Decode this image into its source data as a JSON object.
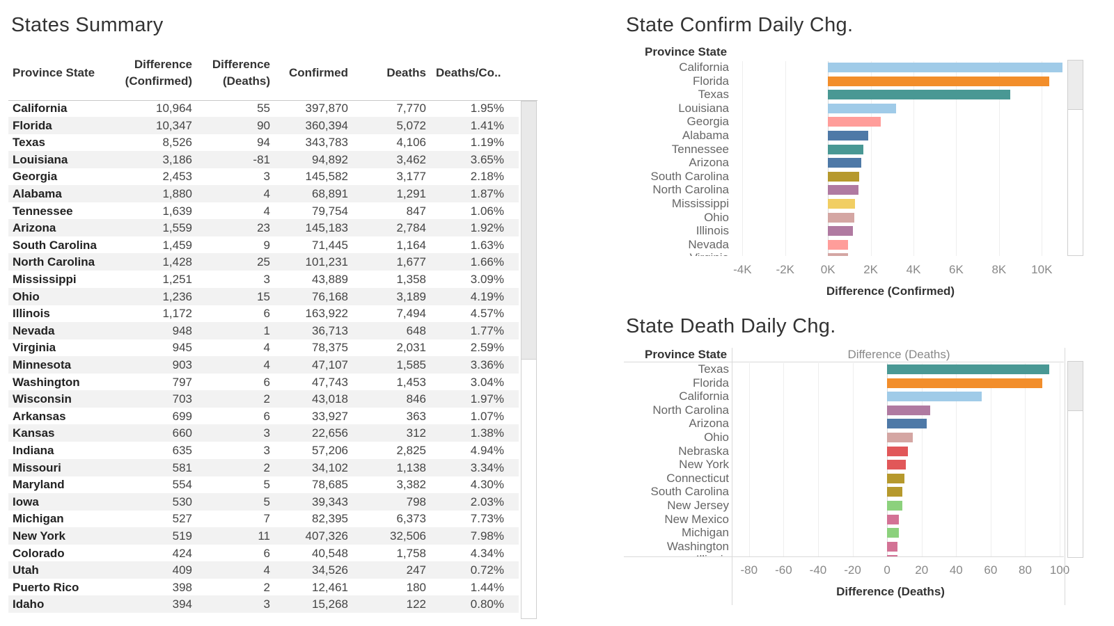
{
  "summary": {
    "title": "States Summary",
    "columns": {
      "state": "Province State",
      "diff_confirmed": [
        "Difference",
        "(Confirmed)"
      ],
      "diff_deaths": [
        "Difference",
        "(Deaths)"
      ],
      "confirmed": "Confirmed",
      "deaths": "Deaths",
      "ratio": "Deaths/Co.."
    },
    "rows": [
      [
        "California",
        "10,964",
        "55",
        "397,870",
        "7,770",
        "1.95%"
      ],
      [
        "Florida",
        "10,347",
        "90",
        "360,394",
        "5,072",
        "1.41%"
      ],
      [
        "Texas",
        "8,526",
        "94",
        "343,783",
        "4,106",
        "1.19%"
      ],
      [
        "Louisiana",
        "3,186",
        "-81",
        "94,892",
        "3,462",
        "3.65%"
      ],
      [
        "Georgia",
        "2,453",
        "3",
        "145,582",
        "3,177",
        "2.18%"
      ],
      [
        "Alabama",
        "1,880",
        "4",
        "68,891",
        "1,291",
        "1.87%"
      ],
      [
        "Tennessee",
        "1,639",
        "4",
        "79,754",
        "847",
        "1.06%"
      ],
      [
        "Arizona",
        "1,559",
        "23",
        "145,183",
        "2,784",
        "1.92%"
      ],
      [
        "South Carolina",
        "1,459",
        "9",
        "71,445",
        "1,164",
        "1.63%"
      ],
      [
        "North Carolina",
        "1,428",
        "25",
        "101,231",
        "1,677",
        "1.66%"
      ],
      [
        "Mississippi",
        "1,251",
        "3",
        "43,889",
        "1,358",
        "3.09%"
      ],
      [
        "Ohio",
        "1,236",
        "15",
        "76,168",
        "3,189",
        "4.19%"
      ],
      [
        "Illinois",
        "1,172",
        "6",
        "163,922",
        "7,494",
        "4.57%"
      ],
      [
        "Nevada",
        "948",
        "1",
        "36,713",
        "648",
        "1.77%"
      ],
      [
        "Virginia",
        "945",
        "4",
        "78,375",
        "2,031",
        "2.59%"
      ],
      [
        "Minnesota",
        "903",
        "4",
        "47,107",
        "1,585",
        "3.36%"
      ],
      [
        "Washington",
        "797",
        "6",
        "47,743",
        "1,453",
        "3.04%"
      ],
      [
        "Wisconsin",
        "703",
        "2",
        "43,018",
        "846",
        "1.97%"
      ],
      [
        "Arkansas",
        "699",
        "6",
        "33,927",
        "363",
        "1.07%"
      ],
      [
        "Kansas",
        "660",
        "3",
        "22,656",
        "312",
        "1.38%"
      ],
      [
        "Indiana",
        "635",
        "3",
        "57,206",
        "2,825",
        "4.94%"
      ],
      [
        "Missouri",
        "581",
        "2",
        "34,102",
        "1,138",
        "3.34%"
      ],
      [
        "Maryland",
        "554",
        "5",
        "78,685",
        "3,382",
        "4.30%"
      ],
      [
        "Iowa",
        "530",
        "5",
        "39,343",
        "798",
        "2.03%"
      ],
      [
        "Michigan",
        "527",
        "7",
        "82,395",
        "6,373",
        "7.73%"
      ],
      [
        "New York",
        "519",
        "11",
        "407,326",
        "32,506",
        "7.98%"
      ],
      [
        "Colorado",
        "424",
        "6",
        "40,548",
        "1,758",
        "4.34%"
      ],
      [
        "Utah",
        "409",
        "4",
        "34,526",
        "247",
        "0.72%"
      ],
      [
        "Puerto Rico",
        "398",
        "2",
        "12,461",
        "180",
        "1.44%"
      ],
      [
        "Idaho",
        "394",
        "3",
        "15,268",
        "122",
        "0.80%"
      ]
    ]
  },
  "chart_data": [
    {
      "type": "bar",
      "orientation": "horizontal",
      "title": "State Confirm Daily Chg.",
      "row_header": "Province State",
      "xlabel": "Difference (Confirmed)",
      "xlim": [
        -4500,
        11000
      ],
      "ticks": [
        "-4K",
        "-2K",
        "0K",
        "2K",
        "4K",
        "6K",
        "8K",
        "10K"
      ],
      "tick_values": [
        -4000,
        -2000,
        0,
        2000,
        4000,
        6000,
        8000,
        10000
      ],
      "grid": true,
      "categories": [
        "California",
        "Florida",
        "Texas",
        "Louisiana",
        "Georgia",
        "Alabama",
        "Tennessee",
        "Arizona",
        "South Carolina",
        "North Carolina",
        "Mississippi",
        "Ohio",
        "Illinois",
        "Nevada",
        "Virginia"
      ],
      "values": [
        10964,
        10347,
        8526,
        3186,
        2453,
        1880,
        1639,
        1559,
        1459,
        1428,
        1251,
        1236,
        1172,
        948,
        945
      ],
      "colors": [
        "#a0cbe8",
        "#f28e2b",
        "#499894",
        "#a0cbe8",
        "#ff9d9a",
        "#4e79a7",
        "#499894",
        "#4e79a7",
        "#b6992d",
        "#b07aa1",
        "#f1ce63",
        "#d4a6a3",
        "#b07aa1",
        "#ff9d9a",
        "#d4a6a3"
      ]
    },
    {
      "type": "bar",
      "orientation": "horizontal",
      "title": "State Death Daily Chg.",
      "row_header": "Province State",
      "header_axis_label": "Difference (Deaths)",
      "xlabel": "Difference (Deaths)",
      "xlim": [
        -90,
        102
      ],
      "ticks": [
        "-80",
        "-60",
        "-40",
        "-20",
        "0",
        "20",
        "40",
        "60",
        "80",
        "100"
      ],
      "tick_values": [
        -80,
        -60,
        -40,
        -20,
        0,
        20,
        40,
        60,
        80,
        100
      ],
      "grid": true,
      "categories": [
        "Texas",
        "Florida",
        "California",
        "North Carolina",
        "Arizona",
        "Ohio",
        "Nebraska",
        "New York",
        "Connecticut",
        "South Carolina",
        "New Jersey",
        "New Mexico",
        "Michigan",
        "Washington",
        "Illinois"
      ],
      "values": [
        94,
        90,
        55,
        25,
        23,
        15,
        12,
        11,
        10,
        9,
        9,
        7,
        7,
        6,
        6
      ],
      "colors": [
        "#499894",
        "#f28e2b",
        "#a0cbe8",
        "#b07aa1",
        "#4e79a7",
        "#d4a6a3",
        "#e15759",
        "#e15759",
        "#b6992d",
        "#b6992d",
        "#8cd17d",
        "#d37295",
        "#8cd17d",
        "#d37295",
        "#d37295"
      ]
    }
  ]
}
